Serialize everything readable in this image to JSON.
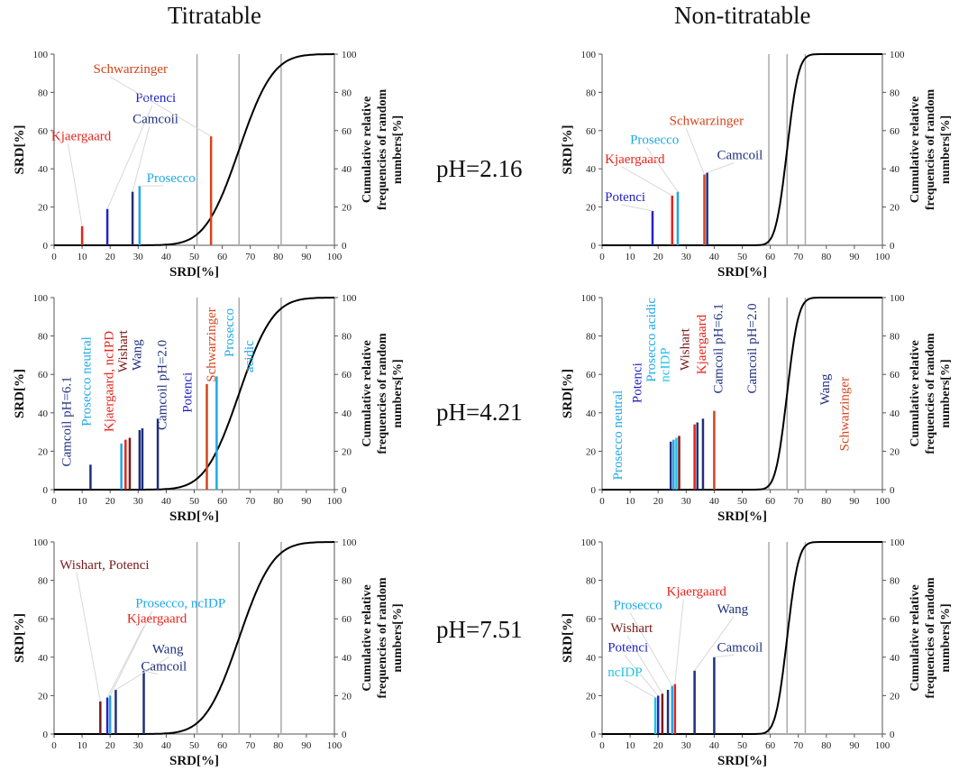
{
  "columns": {
    "left": "Titratable",
    "right": "Non-titratable"
  },
  "rows": [
    "pH=2.16",
    "pH=4.21",
    "pH=7.51"
  ],
  "axis_text": {
    "xlabel": "SRD[%]",
    "ylabel": "SRD[%]",
    "y2label_line1": "Cumulative relative",
    "y2label_line2": "frequencies of random",
    "y2label_line3": "numbers[%]"
  },
  "colors": {
    "red": "#e8231b",
    "blue": "#2323c8",
    "navy": "#1f2f7d",
    "lightblue": "#1fa8e6",
    "cyan": "#22c3e6",
    "darkred": "#7a1a1a",
    "orange": "#d4441c",
    "curve": "#000000",
    "vline": "#aaaaaa"
  },
  "chart_data": [
    {
      "type": "bar",
      "title": "",
      "column": "Titratable",
      "row": "pH=2.16",
      "xlabel": "SRD[%]",
      "ylabel": "SRD[%]",
      "y2label": "Cumulative relative frequencies of random numbers[%]",
      "xlim": [
        0,
        100
      ],
      "ylim": [
        0,
        100
      ],
      "y2lim": [
        0,
        100
      ],
      "ticks": [
        0,
        10,
        20,
        30,
        40,
        50,
        60,
        70,
        80,
        90,
        100
      ],
      "y_ticks": [
        0,
        20,
        40,
        60,
        80,
        100
      ],
      "curve": {
        "mean": 66,
        "sd": 9.5
      },
      "vlines": [
        51,
        66,
        81
      ],
      "bars": [
        {
          "x": 10,
          "y": 10,
          "color": "red"
        },
        {
          "x": 19,
          "y": 19,
          "color": "blue"
        },
        {
          "x": 28,
          "y": 28,
          "color": "navy"
        },
        {
          "x": 30.5,
          "y": 31,
          "color": "lightblue"
        },
        {
          "x": 56,
          "y": 57,
          "color": "orange"
        }
      ],
      "labels": [
        {
          "text": "Kjaergaard",
          "x": -1,
          "y": 55,
          "color": "red",
          "bx": 10,
          "by": 10
        },
        {
          "text": "Potenci",
          "x": 29,
          "y": 75,
          "color": "blue",
          "bx": 19,
          "by": 19
        },
        {
          "text": "Camcoil",
          "x": 28,
          "y": 64,
          "color": "navy",
          "bx": 28,
          "by": 28
        },
        {
          "text": "Prosecco",
          "x": 33,
          "y": 33,
          "color": "lightblue",
          "bx": 30.5,
          "by": 31
        },
        {
          "text": "Schwarzinger",
          "x": 14,
          "y": 90,
          "color": "orange",
          "bx": 56,
          "by": 57
        }
      ]
    },
    {
      "type": "bar",
      "title": "",
      "column": "Non-titratable",
      "row": "pH=2.16",
      "xlabel": "SRD[%]",
      "ylabel": "SRD[%]",
      "y2label": "Cumulative relative frequencies of random numbers[%]",
      "xlim": [
        0,
        100
      ],
      "ylim": [
        0,
        100
      ],
      "y2lim": [
        0,
        100
      ],
      "ticks": [
        0,
        10,
        20,
        30,
        40,
        50,
        60,
        70,
        80,
        90,
        100
      ],
      "y_ticks": [
        0,
        20,
        40,
        60,
        80,
        100
      ],
      "curve": {
        "mean": 66,
        "sd": 3.2
      },
      "vlines": [
        59.5,
        66,
        72.5
      ],
      "bars": [
        {
          "x": 18,
          "y": 18,
          "color": "blue"
        },
        {
          "x": 25,
          "y": 26,
          "color": "red"
        },
        {
          "x": 27,
          "y": 28,
          "color": "lightblue"
        },
        {
          "x": 36.5,
          "y": 37,
          "color": "orange"
        },
        {
          "x": 37.5,
          "y": 38,
          "color": "navy"
        }
      ],
      "labels": [
        {
          "text": "Potenci",
          "x": 1,
          "y": 23,
          "color": "blue",
          "bx": 18,
          "by": 18
        },
        {
          "text": "Kjaergaard",
          "x": 1,
          "y": 43,
          "color": "red",
          "bx": 25,
          "by": 26
        },
        {
          "text": "Prosecco",
          "x": 10,
          "y": 53,
          "color": "lightblue",
          "bx": 27,
          "by": 28
        },
        {
          "text": "Schwarzinger",
          "x": 24,
          "y": 63,
          "color": "orange",
          "bx": 36.5,
          "by": 37
        },
        {
          "text": "Camcoil",
          "x": 41,
          "y": 45,
          "color": "navy",
          "bx": 37.5,
          "by": 38
        }
      ]
    },
    {
      "type": "bar",
      "title": "",
      "column": "Titratable",
      "row": "pH=4.21",
      "xlabel": "SRD[%]",
      "ylabel": "SRD[%]",
      "y2label": "Cumulative relative frequencies of random numbers[%]",
      "xlim": [
        0,
        100
      ],
      "ylim": [
        0,
        100
      ],
      "y2lim": [
        0,
        100
      ],
      "ticks": [
        0,
        10,
        20,
        30,
        40,
        50,
        60,
        70,
        80,
        90,
        100
      ],
      "y_ticks": [
        0,
        20,
        40,
        60,
        80,
        100
      ],
      "curve": {
        "mean": 66,
        "sd": 9.5
      },
      "vlines": [
        51,
        66,
        81
      ],
      "bars": [
        {
          "x": 13,
          "y": 13,
          "color": "navy"
        },
        {
          "x": 24,
          "y": 24,
          "color": "lightblue"
        },
        {
          "x": 25.5,
          "y": 26,
          "color": "red"
        },
        {
          "x": 27,
          "y": 27,
          "color": "darkred"
        },
        {
          "x": 30.5,
          "y": 31,
          "color": "navy"
        },
        {
          "x": 31.5,
          "y": 32,
          "color": "navy"
        },
        {
          "x": 37,
          "y": 37,
          "color": "navy"
        },
        {
          "x": 54.5,
          "y": 55,
          "color": "orange"
        },
        {
          "x": 58,
          "y": 59,
          "color": "lightblue"
        }
      ],
      "rotated_labels": [
        {
          "text": "Camcoil pH=6.1",
          "x": 6,
          "y": 12,
          "color": "navy"
        },
        {
          "text": "Prosecco neutral",
          "x": 13,
          "y": 33,
          "color": "lightblue"
        },
        {
          "text": "Kjaergaard, ncIPD",
          "x": 21,
          "y": 30,
          "color": "red"
        },
        {
          "text": "Wishart",
          "x": 26,
          "y": 61,
          "color": "darkred"
        },
        {
          "text": "Wang",
          "x": 31,
          "y": 62,
          "color": "navy"
        },
        {
          "text": "Camcoil pH=2.0",
          "x": 40,
          "y": 31,
          "color": "navy"
        },
        {
          "text": "Potenci",
          "x": 49,
          "y": 40,
          "color": "blue"
        },
        {
          "text": "Schwarzinger",
          "x": 57.5,
          "y": 56,
          "color": "orange"
        },
        {
          "text": "Prosecco",
          "x": 64,
          "y": 69,
          "color": "lightblue"
        },
        {
          "text": "acidic",
          "x": 71,
          "y": 61,
          "color": "lightblue"
        }
      ]
    },
    {
      "type": "bar",
      "title": "",
      "column": "Non-titratable",
      "row": "pH=4.21",
      "xlabel": "SRD[%]",
      "ylabel": "SRD[%]",
      "y2label": "Cumulative relative frequencies of random numbers[%]",
      "xlim": [
        0,
        100
      ],
      "ylim": [
        0,
        100
      ],
      "y2lim": [
        0,
        100
      ],
      "ticks": [
        0,
        10,
        20,
        30,
        40,
        50,
        60,
        70,
        80,
        90,
        100
      ],
      "y_ticks": [
        0,
        20,
        40,
        60,
        80,
        100
      ],
      "curve": {
        "mean": 66,
        "sd": 3.2
      },
      "vlines": [
        59.5,
        66,
        72.5
      ],
      "bars": [
        {
          "x": 24.5,
          "y": 25,
          "color": "navy"
        },
        {
          "x": 25.5,
          "y": 26,
          "color": "lightblue"
        },
        {
          "x": 26.5,
          "y": 27,
          "color": "cyan"
        },
        {
          "x": 27.5,
          "y": 28,
          "color": "darkred"
        },
        {
          "x": 33,
          "y": 34,
          "color": "red"
        },
        {
          "x": 34,
          "y": 35,
          "color": "navy"
        },
        {
          "x": 36,
          "y": 37,
          "color": "navy"
        },
        {
          "x": 40,
          "y": 41,
          "color": "orange"
        }
      ],
      "rotated_labels": [
        {
          "text": "Prosecco neutral",
          "x": 7,
          "y": 5,
          "color": "lightblue"
        },
        {
          "text": "Potenci",
          "x": 14,
          "y": 45,
          "color": "blue"
        },
        {
          "text": "Prosecco acidic",
          "x": 19,
          "y": 56,
          "color": "lightblue"
        },
        {
          "text": "ncIDP",
          "x": 24,
          "y": 56,
          "color": "cyan"
        },
        {
          "text": "Wishart",
          "x": 31,
          "y": 62,
          "color": "darkred"
        },
        {
          "text": "Kjaergaard",
          "x": 37,
          "y": 60,
          "color": "red"
        },
        {
          "text": "Camcoil pH=6.1",
          "x": 43,
          "y": 50,
          "color": "navy"
        },
        {
          "text": "Camcoil pH=2.0",
          "x": 55,
          "y": 50,
          "color": "navy"
        },
        {
          "text": "Wang",
          "x": 81,
          "y": 44,
          "color": "navy"
        },
        {
          "text": "Schwarzinger",
          "x": 88,
          "y": 20,
          "color": "orange"
        }
      ]
    },
    {
      "type": "bar",
      "title": "",
      "column": "Titratable",
      "row": "pH=7.51",
      "xlabel": "SRD[%]",
      "ylabel": "SRD[%]",
      "y2label": "Cumulative relative frequencies of random numbers[%]",
      "xlim": [
        0,
        100
      ],
      "ylim": [
        0,
        100
      ],
      "y2lim": [
        0,
        100
      ],
      "ticks": [
        0,
        10,
        20,
        30,
        40,
        50,
        60,
        70,
        80,
        90,
        100
      ],
      "y_ticks": [
        0,
        20,
        40,
        60,
        80,
        100
      ],
      "curve": {
        "mean": 66,
        "sd": 9.5
      },
      "vlines": [
        51,
        66,
        81
      ],
      "bars": [
        {
          "x": 16.5,
          "y": 17,
          "color": "darkred"
        },
        {
          "x": 19,
          "y": 19,
          "color": "blue"
        },
        {
          "x": 20,
          "y": 20,
          "color": "lightblue"
        },
        {
          "x": 22,
          "y": 23,
          "color": "navy"
        },
        {
          "x": 32,
          "y": 33,
          "color": "navy"
        }
      ],
      "labels": [
        {
          "text": "Wishart, Potenci",
          "x": 2,
          "y": 86,
          "color": "darkred",
          "bx": 16.5,
          "by": 17
        },
        {
          "text": "Prosecco, ncIDP",
          "x": 29,
          "y": 66,
          "color": "lightblue",
          "bx": 20,
          "by": 20
        },
        {
          "text": "Kjaergaard",
          "x": 26,
          "y": 58,
          "color": "red",
          "bx": 19,
          "by": 19
        },
        {
          "text": "Wang",
          "x": 35,
          "y": 42,
          "color": "navy",
          "bx": 22,
          "by": 23
        },
        {
          "text": "Camcoil",
          "x": 31,
          "y": 33,
          "color": "navy",
          "bx": 32,
          "by": 33
        }
      ]
    },
    {
      "type": "bar",
      "title": "",
      "column": "Non-titratable",
      "row": "pH=7.51",
      "xlabel": "SRD[%]",
      "ylabel": "SRD[%]",
      "y2label": "Cumulative relative frequencies of random numbers[%]",
      "xlim": [
        0,
        100
      ],
      "ylim": [
        0,
        100
      ],
      "y2lim": [
        0,
        100
      ],
      "ticks": [
        0,
        10,
        20,
        30,
        40,
        50,
        60,
        70,
        80,
        90,
        100
      ],
      "y_ticks": [
        0,
        20,
        40,
        60,
        80,
        100
      ],
      "curve": {
        "mean": 66,
        "sd": 3.2
      },
      "vlines": [
        59.5,
        66,
        72.5
      ],
      "bars": [
        {
          "x": 19,
          "y": 19,
          "color": "cyan"
        },
        {
          "x": 20,
          "y": 20,
          "color": "blue"
        },
        {
          "x": 21.5,
          "y": 21,
          "color": "darkred"
        },
        {
          "x": 23.5,
          "y": 23,
          "color": "navy"
        },
        {
          "x": 25,
          "y": 25,
          "color": "lightblue"
        },
        {
          "x": 26,
          "y": 26,
          "color": "red"
        },
        {
          "x": 33,
          "y": 33,
          "color": "navy"
        },
        {
          "x": 40,
          "y": 40,
          "color": "navy"
        }
      ],
      "labels": [
        {
          "text": "Prosecco",
          "x": 4,
          "y": 65,
          "color": "lightblue",
          "bx": 25,
          "by": 25
        },
        {
          "text": "Kjaergaard",
          "x": 23,
          "y": 72,
          "color": "red",
          "bx": 26,
          "by": 26
        },
        {
          "text": "Wang",
          "x": 41,
          "y": 63,
          "color": "navy",
          "bx": 33,
          "by": 33
        },
        {
          "text": "Wishart",
          "x": 3,
          "y": 53,
          "color": "darkred",
          "bx": 21.5,
          "by": 21
        },
        {
          "text": "Potenci",
          "x": 2,
          "y": 43,
          "color": "blue",
          "bx": 20,
          "by": 20
        },
        {
          "text": "Camcoil",
          "x": 41,
          "y": 43,
          "color": "navy",
          "bx": 40,
          "by": 40
        },
        {
          "text": "ncIDP",
          "x": 2,
          "y": 30,
          "color": "cyan",
          "bx": 19,
          "by": 19
        }
      ]
    }
  ]
}
